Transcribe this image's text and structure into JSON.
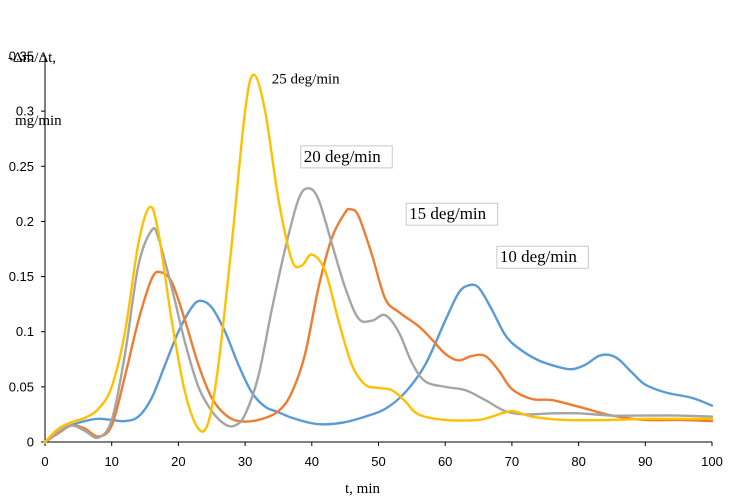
{
  "chart_data": {
    "type": "line",
    "title": "",
    "ylabel_lines": [
      "-Δm/Δt,",
      "mg/min"
    ],
    "xlabel": "t, min",
    "xlim": [
      0,
      100
    ],
    "ylim": [
      0,
      0.35
    ],
    "xticks": [
      "0",
      "10",
      "20",
      "30",
      "40",
      "50",
      "60",
      "70",
      "80",
      "90",
      "100"
    ],
    "yticks": [
      "0",
      "0.05",
      "0.1",
      "0.15",
      "0.2",
      "0.25",
      "0.3",
      "0.35"
    ],
    "grid": false,
    "legend": "none",
    "annotations": [
      {
        "text": "25 deg/min",
        "x": 34,
        "y": 0.325,
        "boxed": false,
        "series": "25"
      },
      {
        "text": "20 deg/min",
        "x": 38.8,
        "y": 0.254,
        "boxed": true,
        "series": "20"
      },
      {
        "text": "15 deg/min",
        "x": 54.6,
        "y": 0.202,
        "boxed": true,
        "series": "15"
      },
      {
        "text": "10 deg/min",
        "x": 68.2,
        "y": 0.163,
        "boxed": true,
        "series": "10"
      }
    ],
    "series": [
      {
        "id": "10",
        "color": "#5b9bd5",
        "points": [
          [
            0,
            0
          ],
          [
            3,
            0.013
          ],
          [
            6,
            0.019
          ],
          [
            8,
            0.021
          ],
          [
            10,
            0.02
          ],
          [
            12,
            0.019
          ],
          [
            14,
            0.023
          ],
          [
            16,
            0.04
          ],
          [
            18,
            0.07
          ],
          [
            20,
            0.1
          ],
          [
            22,
            0.122
          ],
          [
            23.3,
            0.128
          ],
          [
            25,
            0.122
          ],
          [
            27,
            0.1
          ],
          [
            29,
            0.07
          ],
          [
            31,
            0.045
          ],
          [
            33,
            0.032
          ],
          [
            35,
            0.027
          ],
          [
            37,
            0.022
          ],
          [
            40,
            0.017
          ],
          [
            42,
            0.016
          ],
          [
            45,
            0.018
          ],
          [
            48,
            0.023
          ],
          [
            51,
            0.03
          ],
          [
            54,
            0.045
          ],
          [
            57,
            0.07
          ],
          [
            60,
            0.11
          ],
          [
            62,
            0.135
          ],
          [
            63.5,
            0.142
          ],
          [
            65,
            0.14
          ],
          [
            67,
            0.12
          ],
          [
            69,
            0.097
          ],
          [
            71,
            0.085
          ],
          [
            74,
            0.074
          ],
          [
            77,
            0.068
          ],
          [
            79,
            0.066
          ],
          [
            81,
            0.07
          ],
          [
            83,
            0.078
          ],
          [
            84.5,
            0.079
          ],
          [
            86,
            0.075
          ],
          [
            88,
            0.063
          ],
          [
            90,
            0.052
          ],
          [
            93,
            0.045
          ],
          [
            97,
            0.04
          ],
          [
            100,
            0.033
          ]
        ]
      },
      {
        "id": "15",
        "color": "#ed7d31",
        "points": [
          [
            0,
            0
          ],
          [
            2,
            0.008
          ],
          [
            4,
            0.015
          ],
          [
            6,
            0.012
          ],
          [
            8,
            0.005
          ],
          [
            10,
            0.015
          ],
          [
            12,
            0.06
          ],
          [
            14,
            0.11
          ],
          [
            16,
            0.148
          ],
          [
            17.3,
            0.154
          ],
          [
            19,
            0.145
          ],
          [
            21,
            0.11
          ],
          [
            23,
            0.07
          ],
          [
            25,
            0.04
          ],
          [
            27,
            0.025
          ],
          [
            29,
            0.019
          ],
          [
            32,
            0.02
          ],
          [
            35,
            0.028
          ],
          [
            37,
            0.045
          ],
          [
            39,
            0.08
          ],
          [
            41,
            0.14
          ],
          [
            43,
            0.185
          ],
          [
            45,
            0.208
          ],
          [
            45.8,
            0.211
          ],
          [
            47,
            0.205
          ],
          [
            49,
            0.17
          ],
          [
            51,
            0.13
          ],
          [
            53,
            0.118
          ],
          [
            56,
            0.105
          ],
          [
            58,
            0.093
          ],
          [
            60,
            0.08
          ],
          [
            62,
            0.074
          ],
          [
            64,
            0.078
          ],
          [
            66,
            0.078
          ],
          [
            68,
            0.065
          ],
          [
            70,
            0.048
          ],
          [
            73,
            0.039
          ],
          [
            76,
            0.038
          ],
          [
            80,
            0.032
          ],
          [
            85,
            0.024
          ],
          [
            90,
            0.02
          ],
          [
            95,
            0.02
          ],
          [
            100,
            0.019
          ]
        ]
      },
      {
        "id": "20",
        "color": "#a5a5a5",
        "points": [
          [
            0,
            0
          ],
          [
            2,
            0.009
          ],
          [
            4,
            0.015
          ],
          [
            6,
            0.01
          ],
          [
            8,
            0.004
          ],
          [
            10,
            0.02
          ],
          [
            12,
            0.08
          ],
          [
            14,
            0.16
          ],
          [
            16,
            0.192
          ],
          [
            17,
            0.185
          ],
          [
            19,
            0.14
          ],
          [
            21,
            0.09
          ],
          [
            23,
            0.05
          ],
          [
            25,
            0.028
          ],
          [
            27,
            0.016
          ],
          [
            28.5,
            0.015
          ],
          [
            30,
            0.025
          ],
          [
            32,
            0.06
          ],
          [
            34,
            0.12
          ],
          [
            36,
            0.175
          ],
          [
            38,
            0.22
          ],
          [
            39.5,
            0.23
          ],
          [
            41,
            0.22
          ],
          [
            43,
            0.18
          ],
          [
            45,
            0.14
          ],
          [
            47,
            0.112
          ],
          [
            49,
            0.11
          ],
          [
            51,
            0.115
          ],
          [
            53,
            0.1
          ],
          [
            55,
            0.072
          ],
          [
            57,
            0.055
          ],
          [
            60,
            0.05
          ],
          [
            63,
            0.047
          ],
          [
            66,
            0.038
          ],
          [
            69,
            0.028
          ],
          [
            72,
            0.025
          ],
          [
            76,
            0.026
          ],
          [
            80,
            0.026
          ],
          [
            85,
            0.024
          ],
          [
            90,
            0.024
          ],
          [
            95,
            0.024
          ],
          [
            100,
            0.023
          ]
        ]
      },
      {
        "id": "25",
        "color": "#ffc000",
        "points": [
          [
            0,
            0
          ],
          [
            2,
            0.012
          ],
          [
            4,
            0.018
          ],
          [
            6,
            0.022
          ],
          [
            8,
            0.03
          ],
          [
            10,
            0.05
          ],
          [
            12,
            0.1
          ],
          [
            14,
            0.18
          ],
          [
            15.7,
            0.213
          ],
          [
            17,
            0.19
          ],
          [
            19,
            0.11
          ],
          [
            21,
            0.045
          ],
          [
            23,
            0.012
          ],
          [
            24.5,
            0.018
          ],
          [
            26,
            0.07
          ],
          [
            28,
            0.18
          ],
          [
            30,
            0.3
          ],
          [
            31.3,
            0.333
          ],
          [
            33,
            0.3
          ],
          [
            35,
            0.22
          ],
          [
            37,
            0.165
          ],
          [
            38.5,
            0.16
          ],
          [
            40,
            0.17
          ],
          [
            42,
            0.155
          ],
          [
            44,
            0.11
          ],
          [
            46,
            0.07
          ],
          [
            48,
            0.052
          ],
          [
            50,
            0.049
          ],
          [
            52,
            0.047
          ],
          [
            54,
            0.037
          ],
          [
            56,
            0.025
          ],
          [
            60,
            0.02
          ],
          [
            65,
            0.02
          ],
          [
            67,
            0.023
          ],
          [
            70,
            0.028
          ],
          [
            73,
            0.023
          ],
          [
            78,
            0.02
          ],
          [
            85,
            0.02
          ],
          [
            90,
            0.021
          ],
          [
            95,
            0.021
          ],
          [
            100,
            0.021
          ]
        ]
      }
    ]
  }
}
